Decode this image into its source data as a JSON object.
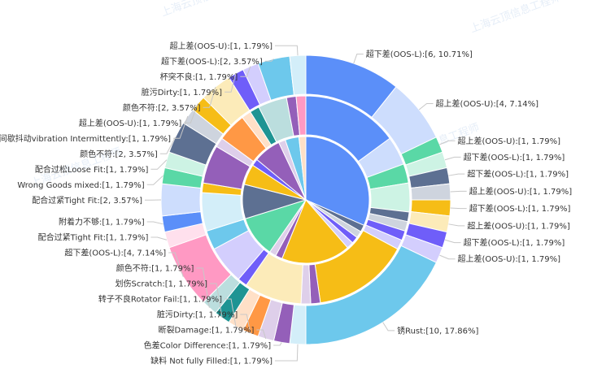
{
  "colors": {
    "palette": [
      "#5B8FF9",
      "#CDDDFD",
      "#5AD8A6",
      "#CDF3E4",
      "#5D7092",
      "#CED4DE",
      "#F6BD16",
      "#FCEBB9",
      "#6F5EF9",
      "#D3CEFD",
      "#6DC8EC",
      "#D3EEF9",
      "#945FB9",
      "#DECFEA",
      "#FF9845",
      "#FFE0C7",
      "#1E9493",
      "#BBDEDE",
      "#FF99C3",
      "#FFE0ED"
    ]
  },
  "watermark": {
    "text": "上海云顶信息工程师"
  },
  "chart_data": {
    "type": "pie",
    "subtype": "sunburst",
    "inner": [
      {
        "value": 18,
        "color": "#5B8FF9"
      },
      {
        "value": 1,
        "color": "#5D7092"
      },
      {
        "value": 1,
        "color": "#CED4DE"
      },
      {
        "value": 1,
        "color": "#6F5EF9"
      },
      {
        "value": 1,
        "color": "#D3CEFD"
      },
      {
        "value": 10,
        "color": "#F6BD16"
      },
      {
        "value": 1,
        "color": "#945FB9"
      },
      {
        "value": 1,
        "color": "#DECFEA"
      },
      {
        "value": 6,
        "color": "#5AD8A6"
      },
      {
        "value": 5,
        "color": "#5D7092"
      },
      {
        "value": 3,
        "color": "#F6BD16"
      },
      {
        "value": 1,
        "color": "#6F5EF9"
      },
      {
        "value": 4,
        "color": "#945FB9"
      },
      {
        "value": 1,
        "color": "#DECFEA"
      },
      {
        "value": 2,
        "color": "#6DC8EC"
      },
      {
        "value": 1,
        "color": "#FFE0C7"
      }
    ],
    "middle": [
      {
        "value": 10,
        "color": "#5B8FF9"
      },
      {
        "value": 3,
        "color": "#CDDDFD"
      },
      {
        "value": 2,
        "color": "#5AD8A6"
      },
      {
        "value": 3,
        "color": "#CDF3E4"
      },
      {
        "value": 1,
        "color": "#5D7092"
      },
      {
        "value": 1,
        "color": "#CED4DE"
      },
      {
        "value": 1,
        "color": "#6F5EF9"
      },
      {
        "value": 1,
        "color": "#D3CEFD"
      },
      {
        "value": 10,
        "color": "#F6BD16"
      },
      {
        "value": 1,
        "color": "#945FB9"
      },
      {
        "value": 1,
        "color": "#DECFEA"
      },
      {
        "value": 6,
        "color": "#FCEBB9"
      },
      {
        "value": 1,
        "color": "#6F5EF9"
      },
      {
        "value": 4,
        "color": "#D3CEFD"
      },
      {
        "value": 2,
        "color": "#6DC8EC"
      },
      {
        "value": 4,
        "color": "#D3EEF9"
      },
      {
        "value": 1,
        "color": "#F6BD16"
      },
      {
        "value": 4,
        "color": "#945FB9"
      },
      {
        "value": 1,
        "color": "#DECFEA"
      },
      {
        "value": 3,
        "color": "#FF9845"
      },
      {
        "value": 1,
        "color": "#FFE0C7"
      },
      {
        "value": 1,
        "color": "#1E9493"
      },
      {
        "value": 3,
        "color": "#BBDEDE"
      },
      {
        "value": 1,
        "color": "#945FB9"
      },
      {
        "value": 1,
        "color": "#FF99C3"
      }
    ],
    "outer": [
      {
        "label": "超下差(OOS-L):[6, 10.71%]",
        "value": 6,
        "color": "#5B8FF9"
      },
      {
        "label": "超上差(OOS-U):[4, 7.14%]",
        "value": 4,
        "color": "#CDDDFD"
      },
      {
        "label": "超上差(OOS-U):[1, 1.79%]",
        "value": 1,
        "color": "#5AD8A6"
      },
      {
        "label": "超下差(OOS-L):[1, 1.79%]",
        "value": 1,
        "color": "#CDF3E4"
      },
      {
        "label": "超下差(OOS-L):[1, 1.79%]",
        "value": 1,
        "color": "#5D7092"
      },
      {
        "label": "超上差(OOS-U):[1, 1.79%]",
        "value": 1,
        "color": "#CED4DE"
      },
      {
        "label": "超下差(OOS-L):[1, 1.79%]",
        "value": 1,
        "color": "#F6BD16"
      },
      {
        "label": "超上差(OOS-U):[1, 1.79%]",
        "value": 1,
        "color": "#FCEBB9"
      },
      {
        "label": "超下差(OOS-L):[1, 1.79%]",
        "value": 1,
        "color": "#6F5EF9"
      },
      {
        "label": "超上差(OOS-U):[1, 1.79%]",
        "value": 1,
        "color": "#D3CEFD"
      },
      {
        "label": "锈Rust:[10, 17.86%]",
        "value": 10,
        "color": "#6DC8EC"
      },
      {
        "label": "缺料 Not fully Filled:[1, 1.79%]",
        "value": 1,
        "color": "#D3EEF9"
      },
      {
        "label": "色差Color Difference:[1, 1.79%]",
        "value": 1,
        "color": "#945FB9"
      },
      {
        "label": "断裂Damage:[1, 1.79%]",
        "value": 1,
        "color": "#DECFEA"
      },
      {
        "label": "脏污Dirty:[1, 1.79%]",
        "value": 1,
        "color": "#FF9845"
      },
      {
        "label": "转子不良Rotator Fail:[1, 1.79%]",
        "value": 1,
        "color": "#FFE0C7"
      },
      {
        "label": "划伤Scratch:[1, 1.79%]",
        "value": 1,
        "color": "#1E9493"
      },
      {
        "label": "颜色不符:[1, 1.79%]",
        "value": 1,
        "color": "#BBDEDE"
      },
      {
        "label": "超下差(OOS-L):[4, 7.14%]",
        "value": 4,
        "color": "#FF99C3"
      },
      {
        "label": "配合过紧Tight Fit:[1, 1.79%]",
        "value": 1,
        "color": "#FFE0ED"
      },
      {
        "label": "附着力不够:[1, 1.79%]",
        "value": 1,
        "color": "#5B8FF9"
      },
      {
        "label": "配合过紧Tight Fit:[2, 3.57%]",
        "value": 2,
        "color": "#CDDDFD"
      },
      {
        "label": "Wrong Goods mixed:[1, 1.79%]",
        "value": 1,
        "color": "#5AD8A6"
      },
      {
        "label": "配合过松Loose Fit:[1, 1.79%]",
        "value": 1,
        "color": "#CDF3E4"
      },
      {
        "label": "颜色不符:[2, 3.57%]",
        "value": 2,
        "color": "#5D7092"
      },
      {
        "label": "间歇抖动vibration Intermittently:[1, 1.79%]",
        "value": 1,
        "color": "#CED4DE"
      },
      {
        "label": "超上差(OOS-U):[1, 1.79%]",
        "value": 1,
        "color": "#F6BD16"
      },
      {
        "label": "颜色不符:[2, 3.57%]",
        "value": 2,
        "color": "#FCEBB9"
      },
      {
        "label": "脏污Dirty:[1, 1.79%]",
        "value": 1,
        "color": "#6F5EF9"
      },
      {
        "label": "杯突不良:[1, 1.79%]",
        "value": 1,
        "color": "#D3CEFD"
      },
      {
        "label": "超下差(OOS-L):[2, 3.57%]",
        "value": 2,
        "color": "#6DC8EC"
      },
      {
        "label": "超上差(OOS-U):[1, 1.79%]",
        "value": 1,
        "color": "#D3EEF9"
      }
    ]
  }
}
